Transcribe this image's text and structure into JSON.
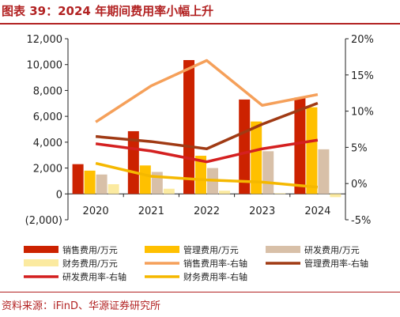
{
  "title": "图表 39：2024 年期间费用率小幅上升",
  "source": "资料来源：iFinD、华源证券研究所",
  "chart_data": {
    "type": "bar",
    "categories": [
      "2020",
      "2021",
      "2022",
      "2023",
      "2024"
    ],
    "y_left": {
      "ylim": [
        -2000,
        12000
      ],
      "ticks": [
        -2000,
        0,
        2000,
        4000,
        6000,
        8000,
        10000,
        12000
      ],
      "tick_labels": [
        "(2,000)",
        "0",
        "2,000",
        "4,000",
        "6,000",
        "8,000",
        "10,000",
        "12,000"
      ]
    },
    "y_right": {
      "ylim": [
        -5,
        20
      ],
      "ticks": [
        -5,
        0,
        5,
        10,
        15,
        20
      ],
      "tick_labels": [
        "-5%",
        "0%",
        "5%",
        "10%",
        "15%",
        "20%"
      ]
    },
    "bar_series": [
      {
        "name": "销售费用/万元",
        "color": "#cc2200",
        "values": [
          2300,
          4850,
          10350,
          7300,
          7450
        ]
      },
      {
        "name": "管理费用/万元",
        "color": "#ffc000",
        "values": [
          1800,
          2200,
          2950,
          5600,
          6700
        ]
      },
      {
        "name": "研发费用/万元",
        "color": "#d8c0a8",
        "values": [
          1500,
          1700,
          2000,
          3300,
          3450
        ]
      },
      {
        "name": "财务费用/万元",
        "color": "#fbeaa0",
        "values": [
          750,
          400,
          250,
          50,
          -250
        ]
      }
    ],
    "line_series": [
      {
        "name": "销售费用率-右轴",
        "color": "#f5a05a",
        "values": [
          8.5,
          13.5,
          17.0,
          10.8,
          12.3
        ]
      },
      {
        "name": "管理费用率-右轴",
        "color": "#a03a14",
        "values": [
          6.5,
          5.8,
          4.8,
          8.2,
          11.1
        ]
      },
      {
        "name": "研发费用率-右轴",
        "color": "#d42020",
        "values": [
          5.5,
          4.5,
          3.0,
          4.8,
          6.0
        ]
      },
      {
        "name": "财务费用率-右轴",
        "color": "#f5b800",
        "values": [
          2.8,
          1.0,
          0.5,
          0.2,
          -0.5
        ]
      }
    ],
    "legend_position": "bottom",
    "grid": false
  }
}
